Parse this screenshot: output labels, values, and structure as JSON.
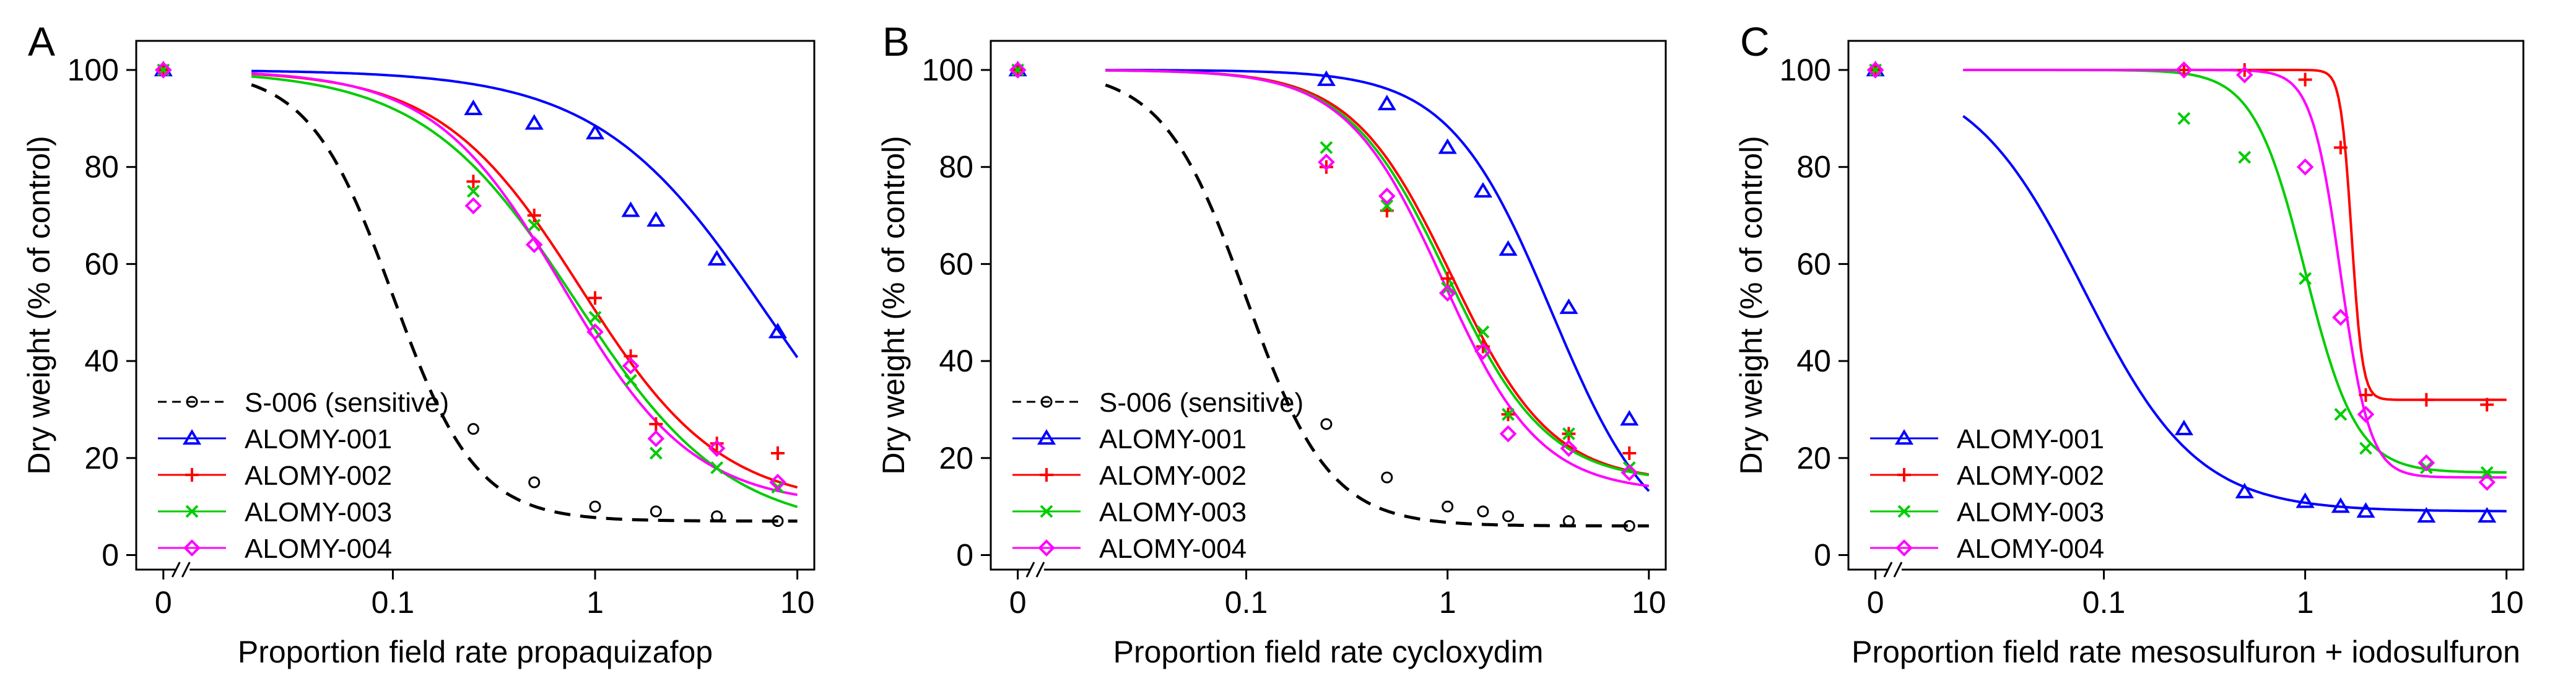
{
  "figure": {
    "series_styles": {
      "S-006 (sensitive)": {
        "color": "#000000",
        "marker": "circle",
        "dashed": true
      },
      "ALOMY-001": {
        "color": "#0000ff",
        "marker": "triangle",
        "dashed": false
      },
      "ALOMY-002": {
        "color": "#ff0000",
        "marker": "plus",
        "dashed": false
      },
      "ALOMY-003": {
        "color": "#00cc00",
        "marker": "cross",
        "dashed": false
      },
      "ALOMY-004": {
        "color": "#ff00ff",
        "marker": "diamond",
        "dashed": false
      }
    }
  },
  "chart_data": [
    {
      "panel": "A",
      "type": "scatter",
      "title": "",
      "xlabel": "Proportion field rate propaquizafop",
      "ylabel": "Dry weight (% of control)",
      "xscale": "log",
      "xlim": [
        0.02,
        10
      ],
      "ylim": [
        -3,
        106
      ],
      "x_ticks": [
        "0",
        "0.1",
        "1",
        "10"
      ],
      "y_ticks": [
        "0",
        "20",
        "40",
        "60",
        "80",
        "100"
      ],
      "control_point": {
        "x_label": "0",
        "y": 100
      },
      "series": [
        {
          "name": "S-006 (sensitive)",
          "points": [
            [
              0.25,
              26
            ],
            [
              0.5,
              15
            ],
            [
              1,
              10
            ],
            [
              2,
              9
            ],
            [
              4,
              8
            ],
            [
              8,
              7
            ]
          ],
          "curve": {
            "lower": 7,
            "upper": 100,
            "ed50": 0.1,
            "slope": 2.1
          }
        },
        {
          "name": "ALOMY-001",
          "points": [
            [
              0.25,
              92
            ],
            [
              0.5,
              89
            ],
            [
              1,
              87
            ],
            [
              1.5,
              71
            ],
            [
              2,
              69
            ],
            [
              4,
              61
            ],
            [
              8,
              46
            ]
          ],
          "curve": {
            "lower": 0,
            "upper": 100,
            "ed50": 7,
            "slope": 1.05
          }
        },
        {
          "name": "ALOMY-002",
          "points": [
            [
              0.25,
              77
            ],
            [
              0.5,
              70
            ],
            [
              1,
              53
            ],
            [
              1.5,
              41
            ],
            [
              2,
              27
            ],
            [
              4,
              23
            ],
            [
              8,
              21
            ]
          ],
          "curve": {
            "lower": 10,
            "upper": 100,
            "ed50": 0.85,
            "slope": 1.25
          }
        },
        {
          "name": "ALOMY-003",
          "points": [
            [
              0.25,
              75
            ],
            [
              0.5,
              68
            ],
            [
              1,
              49
            ],
            [
              1.5,
              36
            ],
            [
              2,
              21
            ],
            [
              4,
              18
            ],
            [
              8,
              14
            ]
          ],
          "curve": {
            "lower": 5,
            "upper": 100,
            "ed50": 0.8,
            "slope": 1.15
          }
        },
        {
          "name": "ALOMY-004",
          "points": [
            [
              0.25,
              72
            ],
            [
              0.5,
              64
            ],
            [
              1,
              46
            ],
            [
              1.5,
              39
            ],
            [
              2,
              24
            ],
            [
              4,
              22
            ],
            [
              8,
              15
            ]
          ],
          "curve": {
            "lower": 10,
            "upper": 100,
            "ed50": 0.7,
            "slope": 1.35
          }
        }
      ],
      "legend": [
        "S-006 (sensitive)",
        "ALOMY-001",
        "ALOMY-002",
        "ALOMY-003",
        "ALOMY-004"
      ],
      "legend_position": "bottom-left"
    },
    {
      "panel": "B",
      "type": "scatter",
      "title": "",
      "xlabel": "Proportion field rate cycloxydim",
      "ylabel": "Dry weight (% of control)",
      "xscale": "log",
      "xlim": [
        0.02,
        10
      ],
      "ylim": [
        -3,
        106
      ],
      "x_ticks": [
        "0",
        "0.1",
        "1",
        "10"
      ],
      "y_ticks": [
        "0",
        "20",
        "40",
        "60",
        "80",
        "100"
      ],
      "control_point": {
        "x_label": "0",
        "y": 100
      },
      "series": [
        {
          "name": "S-006 (sensitive)",
          "points": [
            [
              0.25,
              27
            ],
            [
              0.5,
              16
            ],
            [
              1,
              10
            ],
            [
              1.5,
              9
            ],
            [
              2,
              8
            ],
            [
              4,
              7
            ],
            [
              8,
              6
            ]
          ],
          "curve": {
            "lower": 6,
            "upper": 100,
            "ed50": 0.1,
            "slope": 2.1
          }
        },
        {
          "name": "ALOMY-001",
          "points": [
            [
              0.25,
              98
            ],
            [
              0.5,
              93
            ],
            [
              1,
              84
            ],
            [
              1.5,
              75
            ],
            [
              2,
              63
            ],
            [
              4,
              51
            ],
            [
              8,
              28
            ]
          ],
          "curve": {
            "lower": 0,
            "upper": 100,
            "ed50": 3.3,
            "slope": 1.7
          }
        },
        {
          "name": "ALOMY-002",
          "points": [
            [
              0.25,
              80
            ],
            [
              0.5,
              71
            ],
            [
              1,
              57
            ],
            [
              1.5,
              43
            ],
            [
              2,
              29
            ],
            [
              4,
              25
            ],
            [
              8,
              21
            ]
          ],
          "curve": {
            "lower": 15,
            "upper": 100,
            "ed50": 1.05,
            "slope": 1.75
          }
        },
        {
          "name": "ALOMY-003",
          "points": [
            [
              0.25,
              84
            ],
            [
              0.5,
              72
            ],
            [
              1,
              55
            ],
            [
              1.5,
              46
            ],
            [
              2,
              29
            ],
            [
              4,
              25
            ],
            [
              8,
              18
            ]
          ],
          "curve": {
            "lower": 15,
            "upper": 100,
            "ed50": 1.0,
            "slope": 1.75
          }
        },
        {
          "name": "ALOMY-004",
          "points": [
            [
              0.25,
              81
            ],
            [
              0.5,
              74
            ],
            [
              1,
              54
            ],
            [
              1.5,
              42
            ],
            [
              2,
              25
            ],
            [
              4,
              22
            ],
            [
              8,
              17
            ]
          ],
          "curve": {
            "lower": 13,
            "upper": 100,
            "ed50": 0.95,
            "slope": 1.8
          }
        }
      ],
      "legend": [
        "S-006 (sensitive)",
        "ALOMY-001",
        "ALOMY-002",
        "ALOMY-003",
        "ALOMY-004"
      ],
      "legend_position": "bottom-left"
    },
    {
      "panel": "C",
      "type": "scatter",
      "title": "",
      "xlabel": "Proportion field rate mesosulfuron + iodosulfuron",
      "ylabel": "Dry weight (% of control)",
      "xscale": "log",
      "xlim": [
        0.02,
        10
      ],
      "ylim": [
        -3,
        106
      ],
      "x_ticks": [
        "0",
        "0.1",
        "1",
        "10"
      ],
      "y_ticks": [
        "0",
        "20",
        "40",
        "60",
        "80",
        "100"
      ],
      "control_point": {
        "x_label": "0",
        "y": 100
      },
      "series": [
        {
          "name": "ALOMY-001",
          "points": [
            [
              0.25,
              26
            ],
            [
              0.5,
              13
            ],
            [
              1,
              11
            ],
            [
              1.5,
              10
            ],
            [
              2,
              9
            ],
            [
              4,
              8
            ],
            [
              8,
              8
            ]
          ],
          "curve": {
            "lower": 9,
            "upper": 100,
            "ed50": 0.08,
            "slope": 1.55
          }
        },
        {
          "name": "ALOMY-002",
          "points": [
            [
              0.25,
              100
            ],
            [
              0.5,
              100
            ],
            [
              1,
              98
            ],
            [
              1.5,
              84
            ],
            [
              2,
              33
            ],
            [
              4,
              32
            ],
            [
              8,
              31
            ]
          ],
          "curve": {
            "lower": 32,
            "upper": 100,
            "ed50": 1.7,
            "slope": 16
          }
        },
        {
          "name": "ALOMY-003",
          "points": [
            [
              0.25,
              90
            ],
            [
              0.5,
              82
            ],
            [
              1,
              57
            ],
            [
              1.5,
              29
            ],
            [
              2,
              22
            ],
            [
              4,
              18
            ],
            [
              8,
              17
            ]
          ],
          "curve": {
            "lower": 17,
            "upper": 100,
            "ed50": 1.0,
            "slope": 3.4
          }
        },
        {
          "name": "ALOMY-004",
          "points": [
            [
              0.25,
              100
            ],
            [
              0.5,
              99
            ],
            [
              1,
              80
            ],
            [
              1.5,
              49
            ],
            [
              2,
              29
            ],
            [
              4,
              19
            ],
            [
              8,
              15
            ]
          ],
          "curve": {
            "lower": 16,
            "upper": 100,
            "ed50": 1.5,
            "slope": 6
          }
        }
      ],
      "legend": [
        "ALOMY-001",
        "ALOMY-002",
        "ALOMY-003",
        "ALOMY-004"
      ],
      "legend_position": "bottom-left"
    }
  ]
}
